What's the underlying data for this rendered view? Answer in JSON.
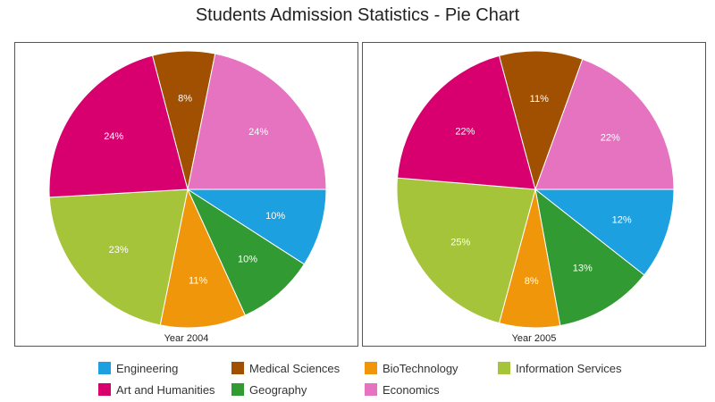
{
  "chart_data": {
    "type": "pie",
    "title": "Students Admission Statistics - Pie Chart",
    "categories": [
      "Engineering",
      "Medical Sciences",
      "BioTechnology",
      "Information Services",
      "Art and Humanities",
      "Geography",
      "Economics"
    ],
    "colors": {
      "Engineering": "#1ca0e0",
      "Medical Sciences": "#a05000",
      "BioTechnology": "#f0960a",
      "Information Services": "#a5c43a",
      "Art and Humanities": "#d8006f",
      "Geography": "#329a32",
      "Economics": "#e673c0"
    },
    "legend": {
      "position": "bottom",
      "items": [
        {
          "label": "Engineering",
          "color": "#1ca0e0"
        },
        {
          "label": "Medical Sciences",
          "color": "#a05000"
        },
        {
          "label": "BioTechnology",
          "color": "#f0960a"
        },
        {
          "label": "Information Services",
          "color": "#a5c43a"
        },
        {
          "label": "Art and Humanities",
          "color": "#d8006f"
        },
        {
          "label": "Geography",
          "color": "#329a32"
        },
        {
          "label": "Economics",
          "color": "#e673c0"
        }
      ]
    },
    "pies": [
      {
        "caption": "Year 2004",
        "start_angle": 0,
        "direction": "clockwise",
        "slices": [
          {
            "category": "Engineering",
            "value": 10,
            "label": "10%"
          },
          {
            "category": "Geography",
            "value": 10,
            "label": "10%"
          },
          {
            "category": "BioTechnology",
            "value": 11,
            "label": "11%"
          },
          {
            "category": "Information Services",
            "value": 23,
            "label": "23%"
          },
          {
            "category": "Art and Humanities",
            "value": 24,
            "label": "24%"
          },
          {
            "category": "Medical Sciences",
            "value": 8,
            "label": "8%"
          },
          {
            "category": "Economics",
            "value": 24,
            "label": "24%"
          }
        ]
      },
      {
        "caption": "Year 2005",
        "start_angle": 0,
        "direction": "clockwise",
        "slices": [
          {
            "category": "Engineering",
            "value": 12,
            "label": "12%"
          },
          {
            "category": "Geography",
            "value": 13,
            "label": "13%"
          },
          {
            "category": "BioTechnology",
            "value": 8,
            "label": "8%"
          },
          {
            "category": "Information Services",
            "value": 25,
            "label": "25%"
          },
          {
            "category": "Art and Humanities",
            "value": 22,
            "label": "22%"
          },
          {
            "category": "Medical Sciences",
            "value": 11,
            "label": "11%"
          },
          {
            "category": "Economics",
            "value": 22,
            "label": "22%"
          }
        ]
      }
    ]
  }
}
